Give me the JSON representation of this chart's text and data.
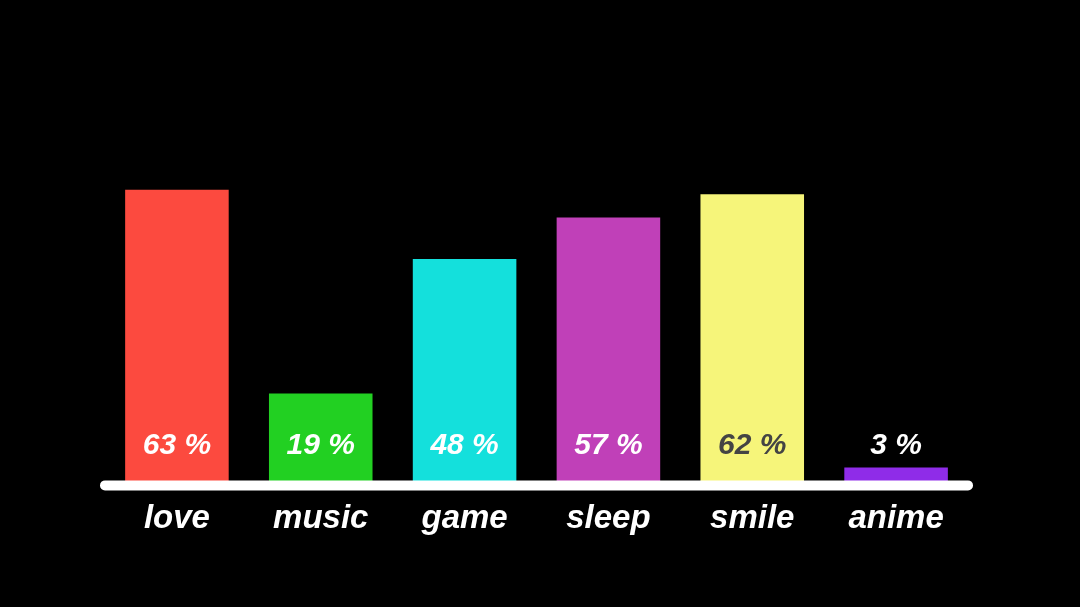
{
  "chart_data": {
    "type": "bar",
    "categories": [
      "love",
      "music",
      "game",
      "sleep",
      "smile",
      "anime"
    ],
    "values": [
      63,
      19,
      48,
      57,
      62,
      3
    ],
    "colors": [
      "#fc4a3f",
      "#22d022",
      "#14e0dc",
      "#c040b8",
      "#f6f57a",
      "#8f2ce8"
    ],
    "value_labels": [
      "63 %",
      "19 %",
      "48 %",
      "57 %",
      "62 %",
      "3 %"
    ]
  }
}
